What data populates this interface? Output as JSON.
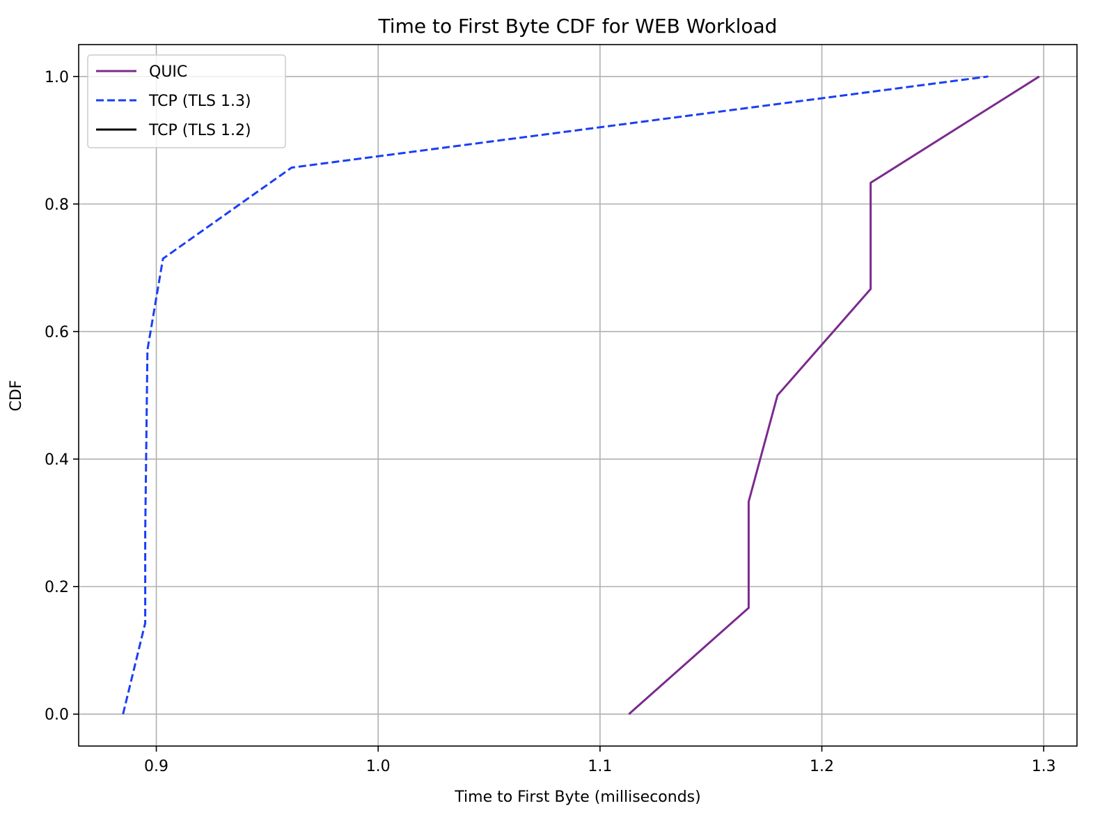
{
  "chart_data": {
    "type": "line",
    "title": "Time to First Byte CDF for WEB Workload",
    "xlabel": "Time to First Byte (milliseconds)",
    "ylabel": "CDF",
    "xlim": [
      0.865,
      1.315
    ],
    "ylim": [
      -0.05,
      1.05
    ],
    "xticks": [
      0.9,
      1.0,
      1.1,
      1.2,
      1.3
    ],
    "xtick_labels": [
      "0.9",
      "1.0",
      "1.1",
      "1.2",
      "1.3"
    ],
    "yticks": [
      0.0,
      0.2,
      0.4,
      0.6,
      0.8,
      1.0
    ],
    "ytick_labels": [
      "0.0",
      "0.2",
      "0.4",
      "0.6",
      "0.8",
      "1.0"
    ],
    "grid": true,
    "legend_position": "top-left",
    "series": [
      {
        "name": "QUIC",
        "color": "#7b2a8e",
        "style": "solid",
        "x": [
          1.113,
          1.167,
          1.167,
          1.18,
          1.222,
          1.222,
          1.298
        ],
        "y": [
          0.0,
          0.1667,
          0.3333,
          0.5,
          0.6667,
          0.8333,
          1.0
        ]
      },
      {
        "name": "TCP (TLS 1.3)",
        "color": "#1a3ef5",
        "style": "dashed",
        "x": [
          0.885,
          0.895,
          0.895,
          0.896,
          0.903,
          0.961,
          1.275
        ],
        "y": [
          0.0,
          0.1429,
          0.2857,
          0.5714,
          0.7143,
          0.8571,
          1.0
        ]
      },
      {
        "name": "TCP (TLS 1.2)",
        "color": "#000000",
        "style": "solid",
        "x": [],
        "y": []
      }
    ]
  }
}
